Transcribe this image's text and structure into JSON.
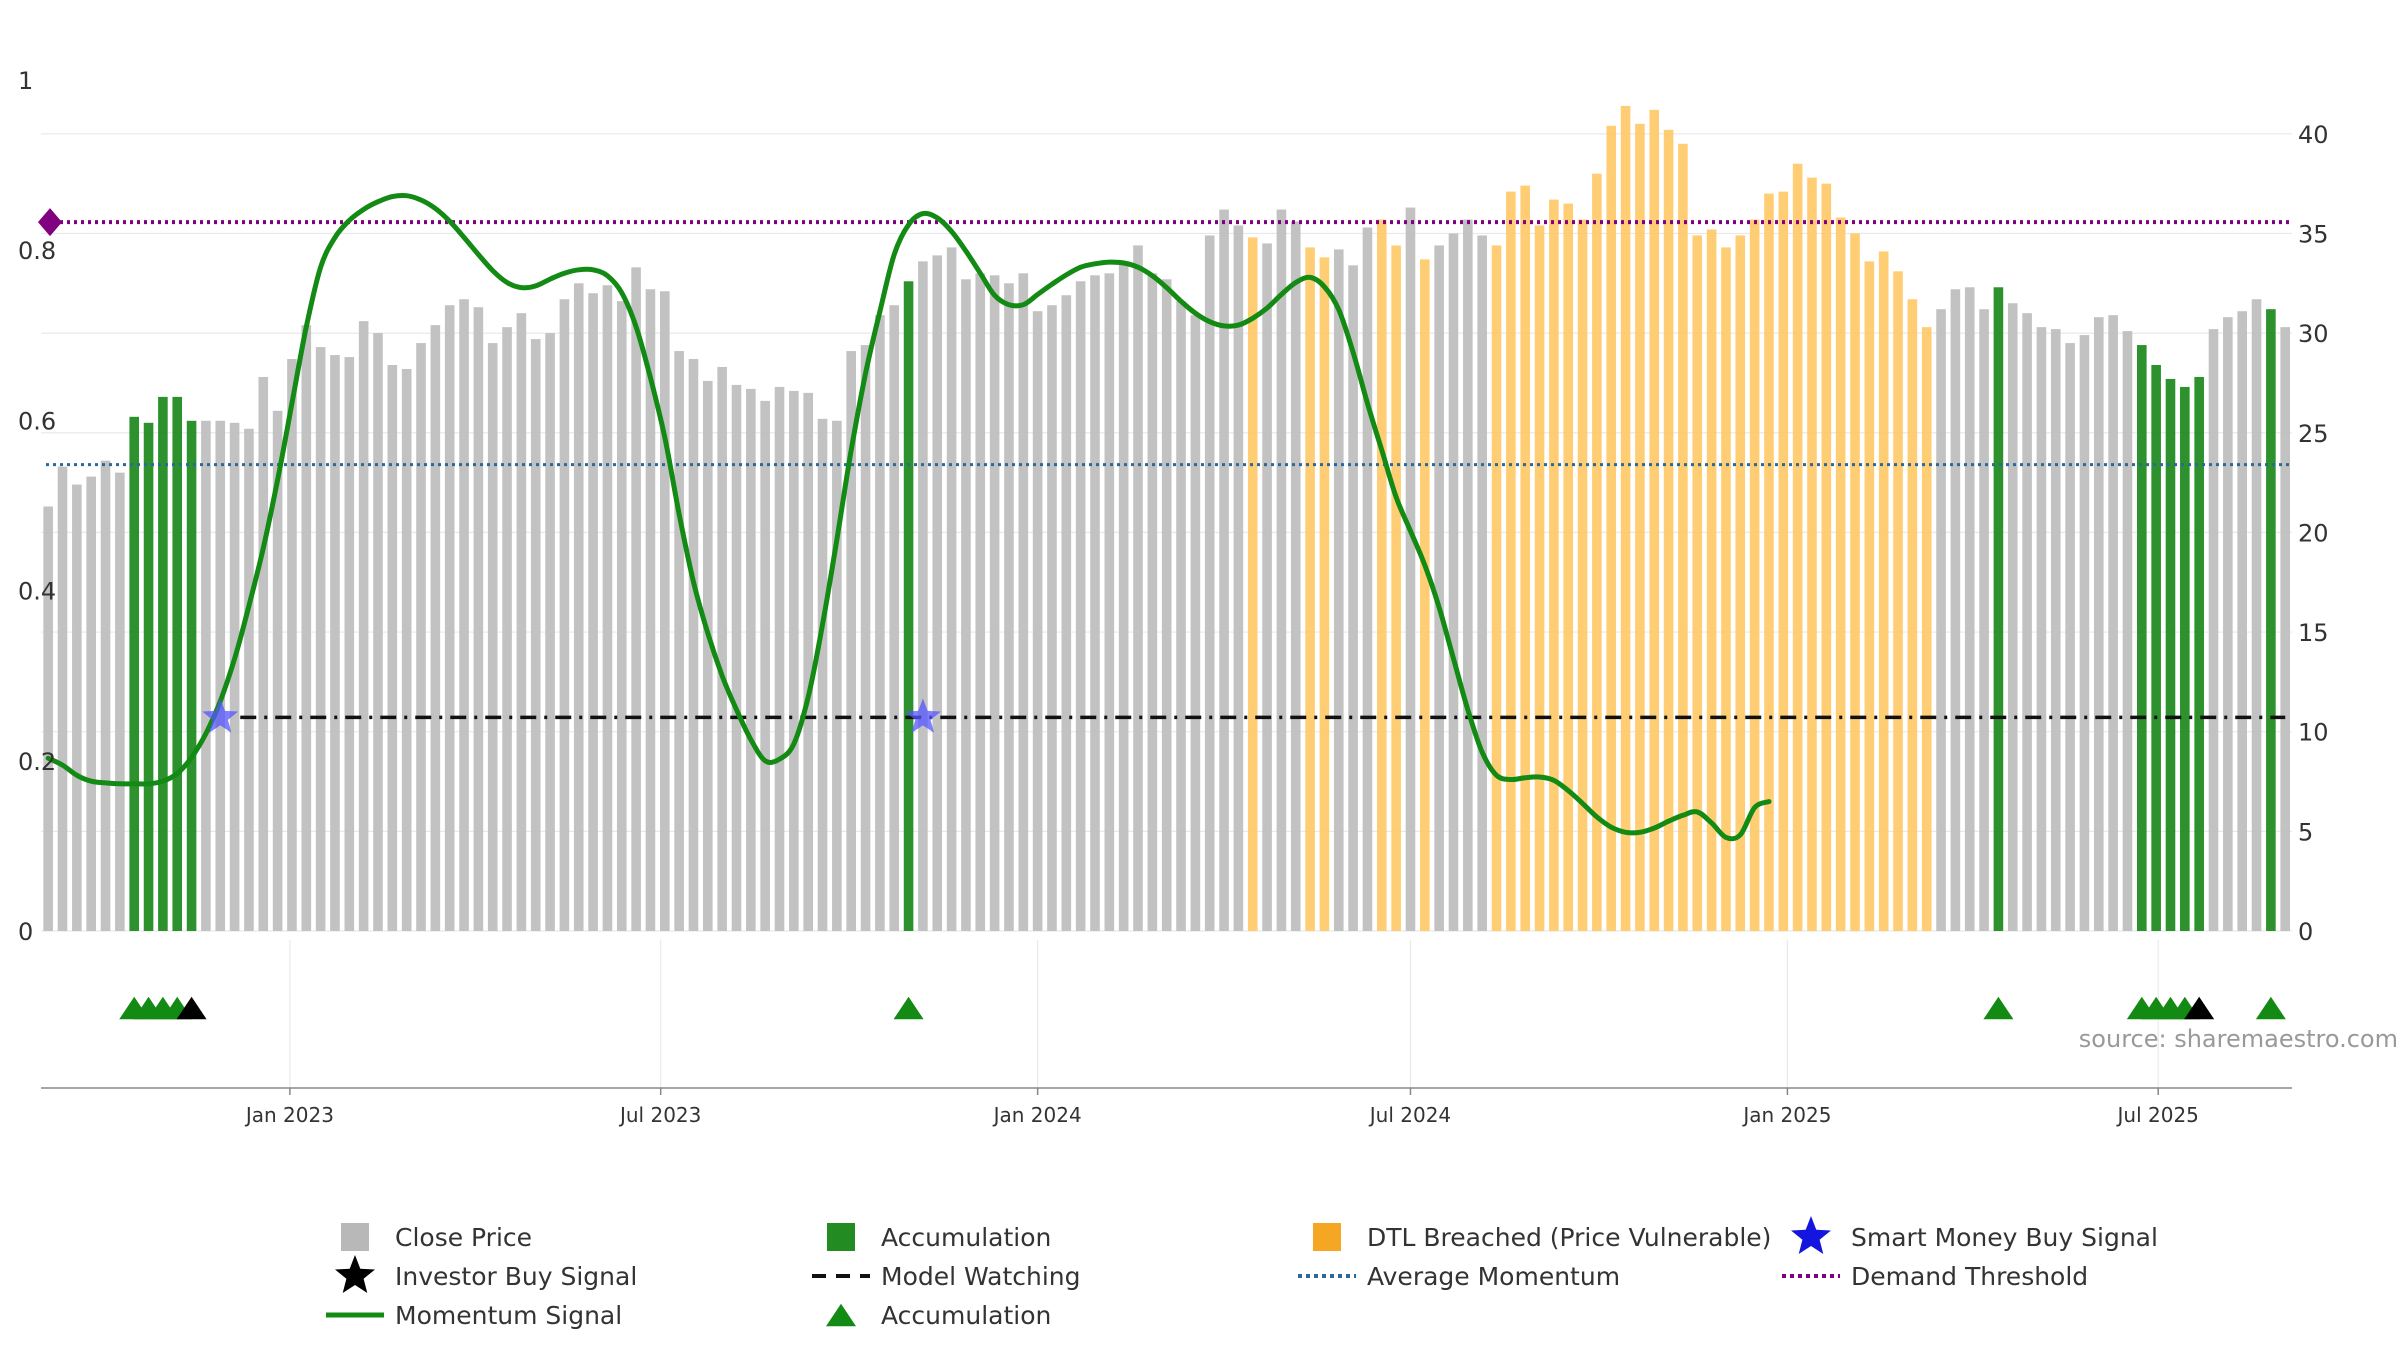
{
  "chart_data": {
    "type": "bar",
    "title": "",
    "source_label": "source: sharemaestro.com",
    "x_ticks": [
      "Jan 2023",
      "Jul 2023",
      "Jan 2024",
      "Jul 2024",
      "Jan 2025",
      "Jul 2025"
    ],
    "left_axis": {
      "ylim": [
        0,
        1
      ],
      "ticks": [
        "0",
        "0.2",
        "0.4",
        "0.6",
        "0.8",
        "1"
      ]
    },
    "right_axis": {
      "ylim": [
        0,
        42.7
      ],
      "ticks": [
        "0",
        "5",
        "10",
        "15",
        "20",
        "25",
        "30",
        "35",
        "40"
      ]
    },
    "colors": {
      "close": "#bdbdbd",
      "accumulation": "#228b22",
      "dtl": "#ffc65c",
      "momentum": "#138a13",
      "average": "#2b6a96",
      "demand": "#800080",
      "watching": "#111111",
      "smart_money": "#5555ff",
      "investor": "#000000",
      "grid": "#e6eaee"
    },
    "series": [
      {
        "name": "Close Price",
        "axis": "right",
        "start_week": "2022-09-05",
        "values": [
          21.3,
          23.3,
          22.4,
          22.8,
          23.6,
          23.0,
          25.8,
          25.5,
          26.8,
          26.8,
          25.6,
          25.6,
          25.6,
          25.5,
          25.2,
          27.8,
          26.1,
          28.7,
          30.4,
          29.3,
          28.9,
          28.8,
          30.6,
          30.0,
          28.4,
          28.2,
          29.5,
          30.4,
          31.4,
          31.7,
          31.3,
          29.5,
          30.3,
          31.0,
          29.7,
          30.0,
          31.7,
          32.5,
          32.0,
          32.4,
          31.6,
          33.3,
          32.2,
          32.1,
          29.1,
          28.7,
          27.6,
          28.3,
          27.4,
          27.2,
          26.6,
          27.3,
          27.1,
          27.0,
          25.7,
          25.6,
          29.1,
          29.4,
          30.9,
          31.4,
          32.6,
          33.6,
          33.9,
          34.3,
          32.7,
          33.0,
          32.9,
          32.5,
          33.0,
          31.1,
          31.4,
          31.9,
          32.6,
          32.9,
          33.0,
          33.5,
          34.4,
          33.0,
          32.7,
          31.6,
          30.9,
          34.9,
          36.2,
          35.4,
          34.8,
          34.5,
          36.2,
          35.6,
          34.3,
          33.8,
          34.2,
          33.4,
          35.3,
          35.7,
          34.4,
          36.3,
          33.7,
          34.4,
          35.0,
          35.7,
          34.9,
          34.4,
          37.1,
          37.4,
          35.4,
          36.7,
          36.5,
          35.7,
          38.0,
          40.4,
          41.4,
          40.5,
          41.2,
          40.2,
          39.5,
          34.9,
          35.2,
          34.3,
          34.9,
          35.7,
          37.0,
          37.1,
          38.5,
          37.8,
          37.5,
          35.8,
          35.0,
          33.6,
          34.1,
          33.1,
          31.7,
          30.3,
          31.2,
          32.2,
          32.3,
          31.2,
          32.3,
          31.5,
          31.0,
          30.3,
          30.2,
          29.5,
          29.9,
          30.8,
          30.9,
          30.1,
          29.4,
          28.4,
          27.7,
          27.3,
          27.8,
          30.2,
          30.8,
          31.1,
          31.7,
          31.2,
          30.3
        ],
        "accumulation_weeks": [
          6,
          7,
          8,
          9,
          10,
          60,
          136,
          146,
          147,
          148,
          149,
          150,
          155
        ],
        "dtl_breached_weeks": [
          84,
          88,
          89,
          93,
          94,
          96,
          101,
          102,
          103,
          104,
          105,
          106,
          107,
          108,
          109,
          110,
          111,
          112,
          113,
          114,
          115,
          116,
          117,
          118,
          119,
          120,
          121,
          122,
          123,
          124,
          125,
          126,
          127,
          128,
          129,
          130,
          131
        ]
      },
      {
        "name": "Momentum Signal",
        "axis": "left",
        "knots": [
          [
            0,
            0.203
          ],
          [
            1,
            0.195
          ],
          [
            2,
            0.183
          ],
          [
            3,
            0.176
          ],
          [
            4,
            0.174
          ],
          [
            5,
            0.173
          ],
          [
            6,
            0.173
          ],
          [
            7,
            0.173
          ],
          [
            8,
            0.176
          ],
          [
            9,
            0.185
          ],
          [
            10,
            0.204
          ],
          [
            11,
            0.232
          ],
          [
            12,
            0.27
          ],
          [
            13,
            0.32
          ],
          [
            14,
            0.382
          ],
          [
            15,
            0.45
          ],
          [
            16,
            0.53
          ],
          [
            17,
            0.62
          ],
          [
            18,
            0.71
          ],
          [
            19,
            0.78
          ],
          [
            20,
            0.815
          ],
          [
            21,
            0.835
          ],
          [
            22,
            0.848
          ],
          [
            23,
            0.857
          ],
          [
            24,
            0.863
          ],
          [
            25,
            0.864
          ],
          [
            26,
            0.859
          ],
          [
            27,
            0.849
          ],
          [
            28,
            0.834
          ],
          [
            29,
            0.815
          ],
          [
            30,
            0.795
          ],
          [
            31,
            0.776
          ],
          [
            32,
            0.762
          ],
          [
            33,
            0.756
          ],
          [
            34,
            0.758
          ],
          [
            35,
            0.766
          ],
          [
            36,
            0.773
          ],
          [
            37,
            0.777
          ],
          [
            38,
            0.777
          ],
          [
            39,
            0.77
          ],
          [
            40,
            0.75
          ],
          [
            41,
            0.71
          ],
          [
            42,
            0.65
          ],
          [
            43,
            0.58
          ],
          [
            44,
            0.49
          ],
          [
            45,
            0.41
          ],
          [
            46,
            0.35
          ],
          [
            47,
            0.3
          ],
          [
            48,
            0.26
          ],
          [
            49,
            0.225
          ],
          [
            50,
            0.2
          ],
          [
            51,
            0.202
          ],
          [
            52,
            0.22
          ],
          [
            53,
            0.275
          ],
          [
            54,
            0.36
          ],
          [
            55,
            0.46
          ],
          [
            56,
            0.565
          ],
          [
            57,
            0.655
          ],
          [
            58,
            0.728
          ],
          [
            59,
            0.795
          ],
          [
            60,
            0.83
          ],
          [
            61,
            0.843
          ],
          [
            62,
            0.838
          ],
          [
            63,
            0.822
          ],
          [
            64,
            0.799
          ],
          [
            65,
            0.773
          ],
          [
            66,
            0.747
          ],
          [
            67,
            0.736
          ],
          [
            68,
            0.736
          ],
          [
            69,
            0.748
          ],
          [
            70,
            0.76
          ],
          [
            71,
            0.771
          ],
          [
            72,
            0.78
          ],
          [
            73,
            0.784
          ],
          [
            74,
            0.786
          ],
          [
            75,
            0.785
          ],
          [
            76,
            0.78
          ],
          [
            77,
            0.77
          ],
          [
            78,
            0.756
          ],
          [
            79,
            0.74
          ],
          [
            80,
            0.726
          ],
          [
            81,
            0.716
          ],
          [
            82,
            0.711
          ],
          [
            83,
            0.712
          ],
          [
            84,
            0.72
          ],
          [
            85,
            0.732
          ],
          [
            86,
            0.748
          ],
          [
            87,
            0.762
          ],
          [
            88,
            0.768
          ],
          [
            89,
            0.757
          ],
          [
            90,
            0.73
          ],
          [
            91,
            0.68
          ],
          [
            92,
            0.62
          ],
          [
            93,
            0.565
          ],
          [
            94,
            0.51
          ],
          [
            95,
            0.47
          ],
          [
            96,
            0.43
          ],
          [
            97,
            0.38
          ],
          [
            98,
            0.32
          ],
          [
            99,
            0.26
          ],
          [
            100,
            0.21
          ],
          [
            101,
            0.183
          ],
          [
            102,
            0.178
          ],
          [
            103,
            0.18
          ],
          [
            104,
            0.181
          ],
          [
            105,
            0.177
          ],
          [
            106,
            0.165
          ],
          [
            107,
            0.15
          ],
          [
            108,
            0.134
          ],
          [
            109,
            0.122
          ],
          [
            110,
            0.116
          ],
          [
            111,
            0.116
          ],
          [
            112,
            0.121
          ],
          [
            113,
            0.129
          ],
          [
            114,
            0.136
          ],
          [
            115,
            0.14
          ],
          [
            116,
            0.127
          ],
          [
            117,
            0.11
          ],
          [
            118,
            0.113
          ],
          [
            119,
            0.145
          ],
          [
            120,
            0.152
          ]
        ]
      },
      {
        "name": "Average Momentum",
        "axis": "left",
        "value": 0.548
      },
      {
        "name": "Demand Threshold",
        "axis": "left",
        "value": 0.833
      },
      {
        "name": "Model Watching",
        "axis": "left",
        "value": 0.251
      },
      {
        "name": "Smart Money Buy Signal",
        "axis": "left",
        "weeks": [
          12,
          61
        ],
        "value": 0.251
      },
      {
        "name": "Accumulation Markers",
        "weeks": [
          6,
          7,
          8,
          9,
          60,
          136,
          146,
          147,
          148,
          149,
          155
        ]
      },
      {
        "name": "Investor Buy Signal Markers",
        "weeks": [
          10,
          150
        ]
      }
    ],
    "legend": {
      "placement": "bottom",
      "items": [
        {
          "label": "Close Price",
          "symbol": "square",
          "color": "#b8b8b8"
        },
        {
          "label": "Accumulation",
          "symbol": "square",
          "color": "#228b22"
        },
        {
          "label": "DTL Breached (Price Vulnerable)",
          "symbol": "square",
          "color": "#f5a623"
        },
        {
          "label": "Smart Money Buy Signal",
          "symbol": "star",
          "color": "#1515e0"
        },
        {
          "label": "Investor Buy Signal",
          "symbol": "star",
          "color": "#000000"
        },
        {
          "label": "Model Watching",
          "symbol": "dash",
          "color": "#111111"
        },
        {
          "label": "Average Momentum",
          "symbol": "dot",
          "color": "#2b6a96"
        },
        {
          "label": "Demand Threshold",
          "symbol": "dot",
          "color": "#800080"
        },
        {
          "label": "Momentum Signal",
          "symbol": "line",
          "color": "#138a13"
        },
        {
          "label": "Accumulation",
          "symbol": "triangle",
          "color": "#138a13"
        }
      ]
    }
  }
}
